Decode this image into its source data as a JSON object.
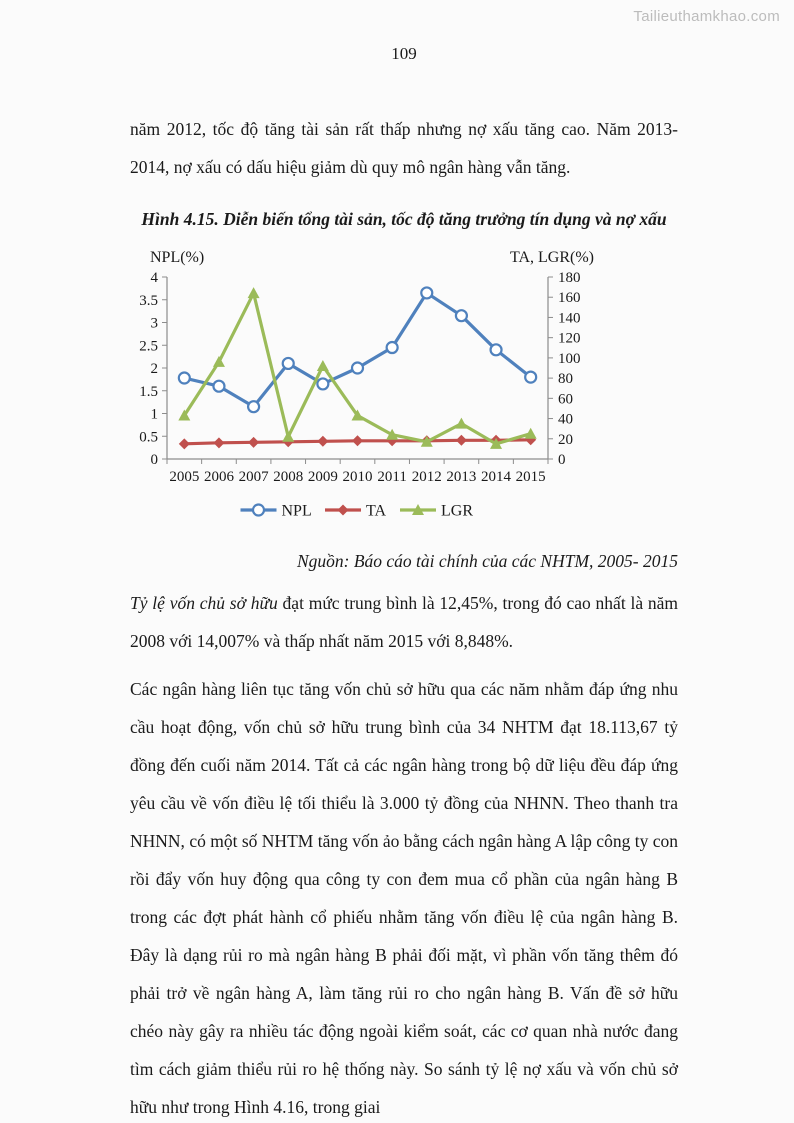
{
  "page": {
    "watermark": "Tailieuthamkhao.com",
    "page_number": "109",
    "para1": "năm 2012, tốc độ tăng tài sản rất thấp nhưng nợ xấu tăng cao. Năm 2013-2014, nợ xấu có dấu hiệu giảm dù quy mô ngân hàng vẫn tăng.",
    "figure_title": "Hình 4.15. Diễn biến tổng tài sản, tốc độ tăng trưởng tín dụng và nợ xấu",
    "source_line": "Nguồn: Báo cáo tài chính của các NHTM, 2005- 2015",
    "para2_lead_italic": "Tỷ lệ vốn chủ sở hữu",
    "para2_rest": " đạt mức trung bình là 12,45%, trong đó cao nhất là năm 2008 với 14,007% và thấp nhất năm 2015 với 8,848%.",
    "para3": "Các ngân hàng liên tục tăng vốn chủ sở hữu qua các năm nhằm đáp ứng nhu cầu hoạt động, vốn chủ sở hữu trung bình của 34 NHTM đạt 18.113,67 tỷ đồng đến cuối năm 2014. Tất cả các ngân hàng trong bộ dữ liệu đều đáp ứng yêu cầu về vốn điều lệ tối thiểu là 3.000 tỷ đồng của NHNN. Theo thanh tra NHNN, có một số NHTM tăng vốn ảo bằng cách ngân hàng A lập công ty con rồi đẩy vốn huy động qua công ty con đem mua cổ phần của ngân hàng B trong các đợt phát hành cổ phiếu nhằm tăng vốn điều lệ của ngân hàng B. Đây là dạng rủi ro mà ngân hàng B phải đối mặt, vì phần vốn tăng thêm đó phải trở về ngân hàng A, làm tăng rủi ro cho ngân hàng B. Vấn đề sở hữu chéo này gây ra nhiều tác động ngoài kiểm soát, các cơ quan nhà nước đang tìm cách giảm thiểu rủi ro hệ thống này. So sánh tỷ lệ nợ xấu và vốn chủ sở hữu như trong Hình 4.16, trong giai"
  },
  "chart_data": {
    "type": "line",
    "title": "",
    "x": [
      "2005",
      "2006",
      "2007",
      "2008",
      "2009",
      "2010",
      "2011",
      "2012",
      "2013",
      "2014",
      "2015"
    ],
    "series": [
      {
        "name": "NPL",
        "axis": "left",
        "color": "#4f81bd",
        "marker": "circle",
        "values": [
          1.78,
          1.6,
          1.15,
          2.1,
          1.65,
          2.0,
          2.45,
          3.65,
          3.15,
          2.4,
          1.8
        ]
      },
      {
        "name": "TA",
        "axis": "right",
        "color": "#c0504d",
        "marker": "diamond",
        "values": [
          15,
          16,
          16.5,
          17,
          17.5,
          18,
          18,
          18,
          18.5,
          18.5,
          19
        ]
      },
      {
        "name": "LGR",
        "axis": "right",
        "color": "#9bbb59",
        "marker": "triangle",
        "values": [
          43,
          96,
          164,
          22,
          92,
          43,
          24,
          17,
          35,
          15,
          25
        ]
      }
    ],
    "left_axis": {
      "label": "NPL(%)",
      "min": 0,
      "max": 4,
      "step": 0.5
    },
    "right_axis": {
      "label": "TA, LGR(%)",
      "min": 0,
      "max": 180,
      "step": 20
    },
    "grid": false,
    "legend_position": "bottom",
    "axis_color": "#8c8c8c"
  }
}
